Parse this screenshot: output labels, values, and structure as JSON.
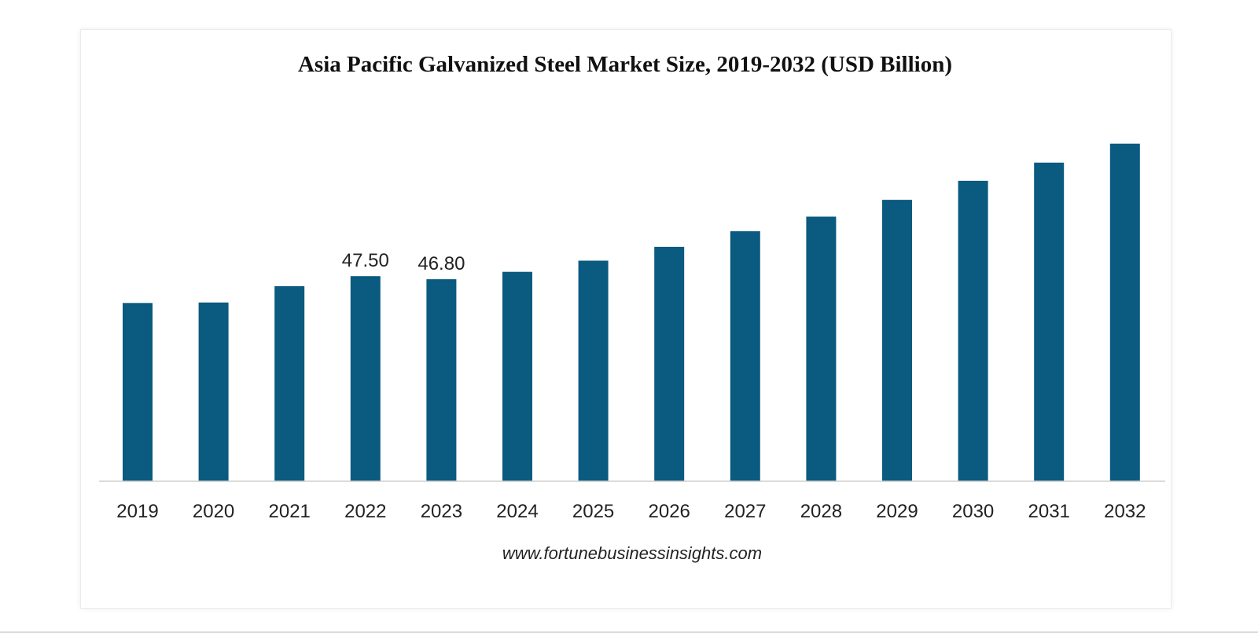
{
  "chart_data": {
    "type": "bar",
    "title": "Asia Pacific Galvanized Steel Market Size, 2019-2032 (USD Billion)",
    "xlabel": "",
    "ylabel": "",
    "categories": [
      "2019",
      "2020",
      "2021",
      "2022",
      "2023",
      "2024",
      "2025",
      "2026",
      "2027",
      "2028",
      "2029",
      "2030",
      "2031",
      "2032"
    ],
    "series": [
      {
        "values": [
          41.3,
          41.4,
          45.2,
          47.5,
          46.8,
          48.5,
          51.1,
          54.3,
          57.9,
          61.3,
          65.2,
          69.6,
          73.8,
          78.2
        ]
      }
    ],
    "data_labels": [
      {
        "category": "2022",
        "text": "47.50"
      },
      {
        "category": "2023",
        "text": "46.80"
      }
    ],
    "ylim": [
      0,
      80
    ],
    "grid": false,
    "legend": "none",
    "bar_color": "#0b5a80",
    "source": "www.fortunebusinessinsights.com"
  }
}
